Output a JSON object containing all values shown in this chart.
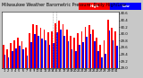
{
  "title": "Milwaukee Weather Barometric Pressure  Daily High/Low",
  "title_fontsize": 3.5,
  "background_color": "#c8c8c8",
  "plot_bg": "#ffffff",
  "bar_width": 0.42,
  "ylim": [
    29.0,
    30.65
  ],
  "yticks": [
    29.0,
    29.2,
    29.4,
    29.6,
    29.8,
    30.0,
    30.2,
    30.4,
    30.6
  ],
  "ytick_fontsize": 2.8,
  "xtick_fontsize": 2.5,
  "days": [
    1,
    2,
    3,
    4,
    5,
    6,
    7,
    8,
    9,
    10,
    11,
    12,
    13,
    14,
    15,
    16,
    17,
    18,
    19,
    20,
    21,
    22,
    23,
    24,
    25,
    26,
    27,
    28,
    29,
    30,
    31
  ],
  "highs": [
    29.68,
    29.55,
    29.72,
    29.82,
    29.88,
    29.78,
    29.6,
    30.02,
    30.28,
    30.25,
    30.18,
    30.12,
    30.05,
    30.08,
    30.32,
    30.4,
    30.28,
    30.12,
    29.95,
    29.9,
    30.02,
    30.08,
    30.2,
    30.25,
    30.12,
    29.88,
    29.68,
    29.8,
    30.42,
    30.18,
    30.08
  ],
  "lows": [
    29.4,
    29.3,
    29.48,
    29.58,
    29.65,
    29.55,
    29.35,
    29.75,
    30.0,
    29.95,
    29.85,
    29.8,
    29.68,
    29.72,
    30.05,
    30.12,
    29.95,
    29.78,
    29.55,
    29.48,
    29.68,
    29.75,
    29.92,
    29.98,
    29.78,
    29.48,
    29.3,
    29.42,
    30.1,
    29.8,
    29.65
  ],
  "high_color": "#ff0000",
  "low_color": "#0000ff",
  "vline_x": 13,
  "vline_color": "#888888",
  "legend_high": "High",
  "legend_low": "Low",
  "legend_fontsize": 2.8
}
